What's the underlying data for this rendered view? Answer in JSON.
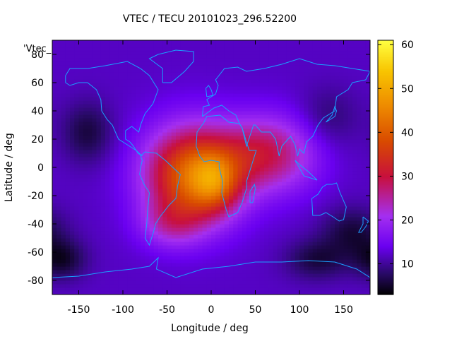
{
  "chart_data": {
    "type": "heatmap",
    "title": "VTEC / TECU 20101023_296.52200",
    "xlabel": "Longitude / deg",
    "ylabel": "Latitude / deg",
    "xlim": [
      -180,
      180
    ],
    "ylim": [
      -90,
      90
    ],
    "xticks": [
      -150,
      -100,
      -50,
      0,
      50,
      100,
      150
    ],
    "yticks": [
      -80,
      -60,
      -40,
      -20,
      0,
      20,
      40,
      60,
      80
    ],
    "key_label": "'Vtec_",
    "colorbar": {
      "min": 3,
      "max": 61,
      "ticks": [
        10,
        20,
        30,
        40,
        50,
        60
      ]
    },
    "colormap_stops": [
      {
        "v": 3,
        "color": "#000000"
      },
      {
        "v": 8,
        "color": "#2a0a6a"
      },
      {
        "v": 14,
        "color": "#6a00f0"
      },
      {
        "v": 21,
        "color": "#a42ff0"
      },
      {
        "v": 30,
        "color": "#c8103c"
      },
      {
        "v": 38,
        "color": "#d84a00"
      },
      {
        "v": 46,
        "color": "#ee8a00"
      },
      {
        "v": 54,
        "color": "#f8c400"
      },
      {
        "v": 61,
        "color": "#ffff40"
      }
    ],
    "field": {
      "description": "VTEC gridded field estimated from image (TECU)",
      "background": 12,
      "features": [
        {
          "lon": -20,
          "lat": -5,
          "amp": 30,
          "sx": 38,
          "sy": 24
        },
        {
          "lon": 5,
          "lat": -10,
          "amp": 12,
          "sx": 18,
          "sy": 14
        },
        {
          "lon": 50,
          "lat": 10,
          "amp": 12,
          "sx": 30,
          "sy": 18
        },
        {
          "lon": -45,
          "lat": -40,
          "amp": 8,
          "sx": 25,
          "sy": 12
        },
        {
          "lon": 90,
          "lat": 10,
          "amp": 8,
          "sx": 30,
          "sy": 20
        },
        {
          "lon": -140,
          "lat": 25,
          "amp": -6,
          "sx": 20,
          "sy": 15
        },
        {
          "lon": 160,
          "lat": -45,
          "amp": -6,
          "sx": 25,
          "sy": 12
        },
        {
          "lon": -170,
          "lat": -65,
          "amp": -7,
          "sx": 20,
          "sy": 10
        },
        {
          "lon": 120,
          "lat": -65,
          "amp": -6,
          "sx": 25,
          "sy": 10
        },
        {
          "lon": 130,
          "lat": 35,
          "amp": -4,
          "sx": 25,
          "sy": 15
        }
      ]
    },
    "coastlines": [
      {
        "name": "north-america",
        "pts": [
          [
            -165,
            65
          ],
          [
            -160,
            70
          ],
          [
            -140,
            70
          ],
          [
            -120,
            72
          ],
          [
            -95,
            75
          ],
          [
            -80,
            70
          ],
          [
            -70,
            65
          ],
          [
            -60,
            55
          ],
          [
            -66,
            45
          ],
          [
            -75,
            38
          ],
          [
            -80,
            30
          ],
          [
            -82,
            25
          ],
          [
            -90,
            29
          ],
          [
            -97,
            26
          ],
          [
            -97,
            20
          ],
          [
            -92,
            18
          ],
          [
            -88,
            15
          ],
          [
            -83,
            10
          ],
          [
            -78,
            8
          ],
          [
            -85,
            12
          ],
          [
            -95,
            16
          ],
          [
            -105,
            20
          ],
          [
            -112,
            30
          ],
          [
            -118,
            34
          ],
          [
            -124,
            40
          ],
          [
            -125,
            48
          ],
          [
            -130,
            55
          ],
          [
            -140,
            60
          ],
          [
            -150,
            60
          ],
          [
            -160,
            58
          ],
          [
            -165,
            60
          ],
          [
            -165,
            65
          ]
        ]
      },
      {
        "name": "greenland",
        "pts": [
          [
            -55,
            60
          ],
          [
            -45,
            60
          ],
          [
            -30,
            68
          ],
          [
            -20,
            75
          ],
          [
            -20,
            82
          ],
          [
            -40,
            83
          ],
          [
            -60,
            80
          ],
          [
            -70,
            77
          ],
          [
            -55,
            70
          ],
          [
            -55,
            60
          ]
        ]
      },
      {
        "name": "south-america",
        "pts": [
          [
            -80,
            8
          ],
          [
            -75,
            11
          ],
          [
            -62,
            10
          ],
          [
            -52,
            5
          ],
          [
            -35,
            -5
          ],
          [
            -38,
            -13
          ],
          [
            -40,
            -22
          ],
          [
            -48,
            -27
          ],
          [
            -58,
            -35
          ],
          [
            -63,
            -40
          ],
          [
            -65,
            -45
          ],
          [
            -70,
            -55
          ],
          [
            -75,
            -50
          ],
          [
            -73,
            -40
          ],
          [
            -72,
            -30
          ],
          [
            -70,
            -18
          ],
          [
            -76,
            -12
          ],
          [
            -81,
            -5
          ],
          [
            -80,
            0
          ],
          [
            -78,
            5
          ],
          [
            -80,
            8
          ]
        ]
      },
      {
        "name": "africa",
        "pts": [
          [
            -17,
            15
          ],
          [
            -16,
            25
          ],
          [
            -8,
            32
          ],
          [
            -5,
            36
          ],
          [
            10,
            37
          ],
          [
            20,
            32
          ],
          [
            32,
            31
          ],
          [
            35,
            28
          ],
          [
            43,
            12
          ],
          [
            51,
            12
          ],
          [
            45,
            0
          ],
          [
            40,
            -10
          ],
          [
            40,
            -15
          ],
          [
            35,
            -25
          ],
          [
            30,
            -32
          ],
          [
            20,
            -35
          ],
          [
            17,
            -30
          ],
          [
            12,
            -18
          ],
          [
            13,
            -10
          ],
          [
            9,
            0
          ],
          [
            9,
            4
          ],
          [
            0,
            5
          ],
          [
            -8,
            4
          ],
          [
            -13,
            8
          ],
          [
            -17,
            15
          ]
        ]
      },
      {
        "name": "eurasia",
        "pts": [
          [
            -10,
            36
          ],
          [
            -9,
            43
          ],
          [
            -2,
            44
          ],
          [
            -5,
            48
          ],
          [
            5,
            52
          ],
          [
            8,
            58
          ],
          [
            5,
            62
          ],
          [
            15,
            70
          ],
          [
            30,
            71
          ],
          [
            40,
            68
          ],
          [
            60,
            70
          ],
          [
            80,
            73
          ],
          [
            100,
            77
          ],
          [
            120,
            73
          ],
          [
            140,
            72
          ],
          [
            160,
            70
          ],
          [
            180,
            68
          ],
          [
            175,
            62
          ],
          [
            160,
            60
          ],
          [
            155,
            55
          ],
          [
            142,
            50
          ],
          [
            140,
            40
          ],
          [
            127,
            35
          ],
          [
            121,
            30
          ],
          [
            115,
            22
          ],
          [
            108,
            18
          ],
          [
            105,
            10
          ],
          [
            100,
            13
          ],
          [
            98,
            8
          ],
          [
            95,
            16
          ],
          [
            90,
            22
          ],
          [
            80,
            15
          ],
          [
            77,
            8
          ],
          [
            73,
            20
          ],
          [
            67,
            25
          ],
          [
            57,
            25
          ],
          [
            50,
            30
          ],
          [
            48,
            30
          ],
          [
            40,
            15
          ],
          [
            35,
            28
          ],
          [
            32,
            31
          ],
          [
            28,
            37
          ],
          [
            20,
            40
          ],
          [
            12,
            44
          ],
          [
            3,
            42
          ],
          [
            -10,
            36
          ]
        ]
      },
      {
        "name": "madagascar",
        "pts": [
          [
            44,
            -25
          ],
          [
            47,
            -25
          ],
          [
            50,
            -15
          ],
          [
            49,
            -12
          ],
          [
            44,
            -17
          ],
          [
            44,
            -25
          ]
        ]
      },
      {
        "name": "australia",
        "pts": [
          [
            114,
            -22
          ],
          [
            115,
            -34
          ],
          [
            123,
            -34
          ],
          [
            130,
            -32
          ],
          [
            138,
            -35
          ],
          [
            145,
            -38
          ],
          [
            150,
            -37
          ],
          [
            153,
            -28
          ],
          [
            146,
            -18
          ],
          [
            142,
            -11
          ],
          [
            137,
            -12
          ],
          [
            131,
            -12
          ],
          [
            126,
            -14
          ],
          [
            121,
            -19
          ],
          [
            114,
            -22
          ]
        ]
      },
      {
        "name": "antarctica",
        "pts": [
          [
            -180,
            -78
          ],
          [
            -150,
            -77
          ],
          [
            -120,
            -74
          ],
          [
            -90,
            -72
          ],
          [
            -70,
            -70
          ],
          [
            -60,
            -64
          ],
          [
            -62,
            -72
          ],
          [
            -40,
            -78
          ],
          [
            -10,
            -72
          ],
          [
            20,
            -70
          ],
          [
            50,
            -67
          ],
          [
            80,
            -67
          ],
          [
            110,
            -66
          ],
          [
            140,
            -67
          ],
          [
            165,
            -72
          ],
          [
            180,
            -78
          ]
        ]
      },
      {
        "name": "indonesia",
        "pts": [
          [
            95,
            5
          ],
          [
            105,
            -6
          ],
          [
            115,
            -8
          ],
          [
            120,
            -9
          ],
          [
            110,
            -3
          ],
          [
            100,
            2
          ],
          [
            95,
            5
          ]
        ]
      },
      {
        "name": "japan",
        "pts": [
          [
            130,
            32
          ],
          [
            135,
            34
          ],
          [
            140,
            36
          ],
          [
            142,
            40
          ],
          [
            140,
            43
          ],
          [
            137,
            37
          ],
          [
            130,
            32
          ]
        ]
      },
      {
        "name": "new-zealand",
        "pts": [
          [
            172,
            -35
          ],
          [
            178,
            -38
          ],
          [
            175,
            -42
          ],
          [
            170,
            -46
          ],
          [
            167,
            -46
          ],
          [
            172,
            -40
          ],
          [
            172,
            -35
          ]
        ]
      },
      {
        "name": "uk",
        "pts": [
          [
            -5,
            50
          ],
          [
            2,
            51
          ],
          [
            0,
            55
          ],
          [
            -3,
            58
          ],
          [
            -6,
            56
          ],
          [
            -5,
            50
          ]
        ]
      }
    ]
  }
}
